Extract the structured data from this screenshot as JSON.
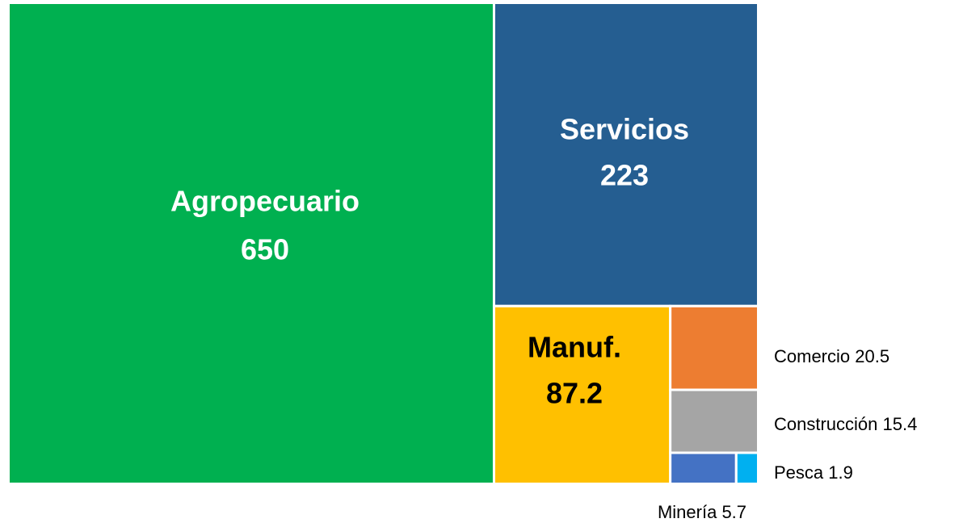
{
  "chart_data": {
    "type": "treemap",
    "categories": [
      "Agropecuario",
      "Servicios",
      "Manuf.",
      "Comercio",
      "Construcción",
      "Minería",
      "Pesca"
    ],
    "values": [
      650,
      223,
      87.2,
      20.5,
      15.4,
      5.7,
      1.9
    ],
    "colors": [
      "#00b050",
      "#255e91",
      "#ffc000",
      "#ed7d31",
      "#a5a5a5",
      "#4472c4",
      "#00b0f0"
    ]
  }
}
